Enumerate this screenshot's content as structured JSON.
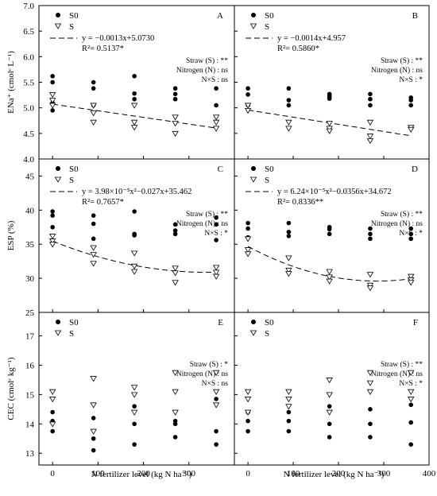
{
  "colors": {
    "axis": "#000000",
    "s0_marker": "#000000",
    "s_marker": "#ffffff",
    "background": "#ffffff"
  },
  "figure": {
    "xlabel": "N fertilizer level (kg N ha⁻¹)",
    "x_ticks": [
      "0",
      "100",
      "200",
      "300",
      "400"
    ]
  },
  "chart_data": [
    {
      "id": "A",
      "type": "scatter",
      "letter": "A",
      "ylabel": "ENa⁺ (cmolᶜ L⁻¹)",
      "ylim": [
        4.0,
        7.0
      ],
      "y_ticks": [
        "4.0",
        "4.5",
        "5.0",
        "5.5",
        "6.0",
        "6.5",
        "7.0"
      ],
      "y_tick_values": [
        4.0,
        4.5,
        5.0,
        5.5,
        6.0,
        6.5,
        7.0
      ],
      "xlim": [
        -30,
        400
      ],
      "series": [
        {
          "name": "S0",
          "points": [
            [
              0,
              5.62
            ],
            [
              0,
              5.5
            ],
            [
              0,
              5.1
            ],
            [
              0,
              4.95
            ],
            [
              90,
              5.5
            ],
            [
              90,
              5.38
            ],
            [
              90,
              5.05
            ],
            [
              180,
              5.62
            ],
            [
              180,
              5.28
            ],
            [
              180,
              5.17
            ],
            [
              270,
              5.38
            ],
            [
              270,
              5.27
            ],
            [
              270,
              5.17
            ],
            [
              360,
              5.38
            ],
            [
              360,
              5.05
            ]
          ]
        },
        {
          "name": "S",
          "points": [
            [
              0,
              5.26
            ],
            [
              0,
              5.15
            ],
            [
              0,
              5.05
            ],
            [
              90,
              5.05
            ],
            [
              90,
              4.9
            ],
            [
              90,
              4.72
            ],
            [
              180,
              5.05
            ],
            [
              180,
              4.72
            ],
            [
              180,
              4.62
            ],
            [
              270,
              4.82
            ],
            [
              270,
              4.7
            ],
            [
              270,
              4.5
            ],
            [
              360,
              4.82
            ],
            [
              360,
              4.72
            ],
            [
              360,
              4.6
            ]
          ]
        }
      ],
      "fit": {
        "kind": "linear",
        "coef": [
          5.073,
          -0.0013
        ]
      },
      "equation": "y = −0.0013x+5.0730",
      "r2": "R²= 0.5137*",
      "stats": [
        "Straw (S) : **",
        "Nitrogen (N) : ns",
        "N×S : ns"
      ]
    },
    {
      "id": "B",
      "type": "scatter",
      "letter": "B",
      "ylim": [
        4.0,
        7.0
      ],
      "y_tick_values": [
        4.0,
        4.5,
        5.0,
        5.5,
        6.0,
        6.5,
        7.0
      ],
      "xlim": [
        -30,
        400
      ],
      "series": [
        {
          "name": "S0",
          "points": [
            [
              0,
              5.38
            ],
            [
              0,
              5.26
            ],
            [
              0,
              5.05
            ],
            [
              90,
              5.38
            ],
            [
              90,
              5.15
            ],
            [
              90,
              5.05
            ],
            [
              180,
              5.27
            ],
            [
              180,
              5.24
            ],
            [
              180,
              5.21
            ],
            [
              180,
              5.18
            ],
            [
              270,
              5.27
            ],
            [
              270,
              5.17
            ],
            [
              270,
              5.05
            ],
            [
              360,
              5.2
            ],
            [
              360,
              5.15
            ],
            [
              360,
              5.05
            ]
          ]
        },
        {
          "name": "S",
          "points": [
            [
              0,
              5.05
            ],
            [
              0,
              4.95
            ],
            [
              90,
              4.72
            ],
            [
              90,
              4.6
            ],
            [
              180,
              4.7
            ],
            [
              180,
              4.6
            ],
            [
              180,
              4.55
            ],
            [
              270,
              4.72
            ],
            [
              270,
              4.45
            ],
            [
              270,
              4.36
            ],
            [
              360,
              4.62
            ],
            [
              360,
              4.58
            ]
          ]
        }
      ],
      "fit": {
        "kind": "linear",
        "coef": [
          4.957,
          -0.0014
        ]
      },
      "equation": "y = −0.0014x+4.957",
      "r2": "R²= 0.5860*",
      "stats": [
        "Straw (S) : **",
        "Nitrogen (N) : ns",
        "N×S : *"
      ]
    },
    {
      "id": "C",
      "type": "scatter",
      "letter": "C",
      "ylabel": "ESP (%)",
      "ylim": [
        25,
        47.5
      ],
      "y_ticks": [
        "25",
        "30",
        "35",
        "40",
        "45"
      ],
      "y_tick_values": [
        25,
        30,
        35,
        40,
        45
      ],
      "xlim": [
        -30,
        400
      ],
      "series": [
        {
          "name": "S0",
          "points": [
            [
              0,
              39.8
            ],
            [
              0,
              39.2
            ],
            [
              0,
              37.5
            ],
            [
              0,
              35.2
            ],
            [
              90,
              39.2
            ],
            [
              90,
              38.0
            ],
            [
              90,
              35.8
            ],
            [
              180,
              39.8
            ],
            [
              180,
              36.5
            ],
            [
              180,
              36.3
            ],
            [
              270,
              37.9
            ],
            [
              270,
              37.0
            ],
            [
              270,
              36.5
            ],
            [
              360,
              38.9
            ],
            [
              360,
              37.9
            ],
            [
              360,
              35.6
            ]
          ]
        },
        {
          "name": "S",
          "points": [
            [
              0,
              36.2
            ],
            [
              0,
              35.5
            ],
            [
              0,
              35.0
            ],
            [
              90,
              34.5
            ],
            [
              90,
              33.5
            ],
            [
              90,
              32.2
            ],
            [
              180,
              33.7
            ],
            [
              180,
              31.8
            ],
            [
              180,
              31.0
            ],
            [
              270,
              31.5
            ],
            [
              270,
              30.8
            ],
            [
              270,
              29.4
            ],
            [
              360,
              31.6
            ],
            [
              360,
              30.9
            ],
            [
              360,
              30.3
            ]
          ]
        }
      ],
      "fit": {
        "kind": "quadratic",
        "coef": [
          35.462,
          -0.027,
          3.98e-05
        ]
      },
      "equation": "y = 3.98×10⁻⁵x²−0.027x+35.462",
      "r2": "R²= 0.7657*",
      "stats": [
        "Straw (S) : **",
        "Nitrogen (N) : ns",
        "N×S : *"
      ]
    },
    {
      "id": "D",
      "type": "scatter",
      "letter": "D",
      "ylim": [
        25,
        47.5
      ],
      "y_tick_values": [
        25,
        30,
        35,
        40,
        45
      ],
      "xlim": [
        -30,
        400
      ],
      "series": [
        {
          "name": "S0",
          "points": [
            [
              0,
              38.1
            ],
            [
              0,
              37.3
            ],
            [
              0,
              36.0
            ],
            [
              90,
              38.1
            ],
            [
              90,
              36.8
            ],
            [
              90,
              36.2
            ],
            [
              180,
              37.5
            ],
            [
              180,
              37.2
            ],
            [
              180,
              36.5
            ],
            [
              270,
              37.3
            ],
            [
              270,
              36.5
            ],
            [
              270,
              35.8
            ],
            [
              360,
              37.3
            ],
            [
              360,
              36.5
            ],
            [
              360,
              35.8
            ]
          ]
        },
        {
          "name": "S",
          "points": [
            [
              0,
              35.8
            ],
            [
              0,
              34.2
            ],
            [
              0,
              33.6
            ],
            [
              90,
              33.0
            ],
            [
              90,
              31.2
            ],
            [
              90,
              30.7
            ],
            [
              180,
              31.0
            ],
            [
              180,
              30.2
            ],
            [
              180,
              29.6
            ],
            [
              270,
              30.6
            ],
            [
              270,
              29.0
            ],
            [
              270,
              28.6
            ],
            [
              360,
              30.3
            ],
            [
              360,
              29.8
            ],
            [
              360,
              29.4
            ]
          ]
        }
      ],
      "fit": {
        "kind": "quadratic",
        "coef": [
          34.672,
          -0.0356,
          6.24e-05
        ]
      },
      "equation": "y = 6.24×10⁻⁵x²−0.0356x+34.672",
      "r2": "R²= 0.8336**",
      "stats": [
        "Straw (S) : **",
        "Nitrogen (N) : ns",
        "N×S : *"
      ]
    },
    {
      "id": "E",
      "type": "scatter",
      "letter": "E",
      "ylabel": "CEC (cmolᶜ kg⁻¹)",
      "ylim": [
        12.6,
        17.8
      ],
      "y_ticks": [
        "13",
        "14",
        "15",
        "16",
        "17"
      ],
      "y_tick_values": [
        13,
        14,
        15,
        16,
        17
      ],
      "xlim": [
        -30,
        400
      ],
      "series": [
        {
          "name": "S0",
          "points": [
            [
              0,
              14.4
            ],
            [
              0,
              14.1
            ],
            [
              0,
              13.75
            ],
            [
              90,
              14.2
            ],
            [
              90,
              13.5
            ],
            [
              90,
              13.1
            ],
            [
              180,
              14.6
            ],
            [
              180,
              14.0
            ],
            [
              180,
              13.3
            ],
            [
              270,
              14.1
            ],
            [
              270,
              14.0
            ],
            [
              270,
              13.55
            ],
            [
              360,
              14.85
            ],
            [
              360,
              13.75
            ],
            [
              360,
              13.3
            ]
          ]
        },
        {
          "name": "S",
          "points": [
            [
              0,
              15.1
            ],
            [
              0,
              14.85
            ],
            [
              0,
              14.0
            ],
            [
              90,
              15.55
            ],
            [
              90,
              14.65
            ],
            [
              90,
              13.75
            ],
            [
              180,
              15.25
            ],
            [
              180,
              15.0
            ],
            [
              180,
              14.4
            ],
            [
              270,
              15.75
            ],
            [
              270,
              15.1
            ],
            [
              270,
              14.4
            ],
            [
              360,
              15.75
            ],
            [
              360,
              15.1
            ],
            [
              360,
              14.65
            ]
          ]
        }
      ],
      "stats": [
        "Straw (S) : *",
        "Nitrogen (N) : ns",
        "N×S : ns"
      ]
    },
    {
      "id": "F",
      "type": "scatter",
      "letter": "F",
      "ylim": [
        12.6,
        17.8
      ],
      "y_tick_values": [
        13,
        14,
        15,
        16,
        17
      ],
      "xlim": [
        -30,
        400
      ],
      "series": [
        {
          "name": "S0",
          "points": [
            [
              0,
              14.4
            ],
            [
              0,
              14.1
            ],
            [
              0,
              13.75
            ],
            [
              90,
              14.4
            ],
            [
              90,
              14.1
            ],
            [
              90,
              13.75
            ],
            [
              180,
              14.6
            ],
            [
              180,
              14.0
            ],
            [
              180,
              13.55
            ],
            [
              270,
              14.5
            ],
            [
              270,
              14.0
            ],
            [
              270,
              13.55
            ],
            [
              360,
              14.65
            ],
            [
              360,
              14.05
            ],
            [
              360,
              13.3
            ]
          ]
        },
        {
          "name": "S",
          "points": [
            [
              0,
              15.1
            ],
            [
              0,
              14.85
            ],
            [
              0,
              14.4
            ],
            [
              90,
              15.1
            ],
            [
              90,
              14.85
            ],
            [
              90,
              14.6
            ],
            [
              180,
              15.5
            ],
            [
              180,
              15.0
            ],
            [
              180,
              14.4
            ],
            [
              270,
              15.75
            ],
            [
              270,
              15.4
            ],
            [
              270,
              15.1
            ],
            [
              360,
              15.75
            ],
            [
              360,
              15.1
            ],
            [
              360,
              14.85
            ]
          ]
        }
      ],
      "stats": [
        "Straw (S) : **",
        "Nitrogen (N) : ns",
        "N×S : *"
      ]
    }
  ]
}
